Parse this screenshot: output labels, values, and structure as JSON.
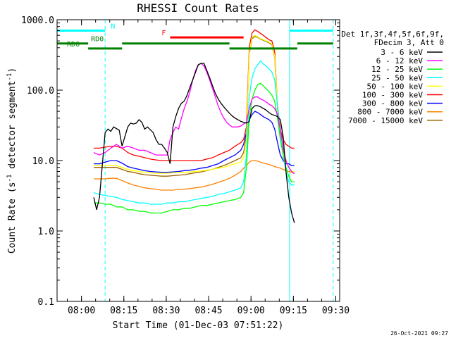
{
  "chart_data": {
    "type": "line",
    "title": "RHESSI Count Rates",
    "xlabel": "Start Time (01-Dec-03 07:51:22)",
    "ylabel_main": "Count Rate (s",
    "ylabel_sup1": "-1",
    "ylabel_mid": " detector segment",
    "ylabel_sup2": "-1",
    "ylabel_end": ")",
    "timestamp": "26-Oct-2021 09:27",
    "x_scale": "time (minutes since 07:51:22)",
    "xlim": [
      0,
      100
    ],
    "y_scale": "log",
    "ylim": [
      0.1,
      1000
    ],
    "x_ticks": [
      {
        "value": 8.63,
        "label": "08:00"
      },
      {
        "value": 23.63,
        "label": "08:15"
      },
      {
        "value": 38.63,
        "label": "08:30"
      },
      {
        "value": 53.63,
        "label": "08:45"
      },
      {
        "value": 68.63,
        "label": "09:00"
      },
      {
        "value": 83.63,
        "label": "09:15"
      },
      {
        "value": 98.63,
        "label": "09:30"
      }
    ],
    "y_ticks": [
      {
        "value": 0.1,
        "label": "0.1"
      },
      {
        "value": 1,
        "label": "1.0"
      },
      {
        "value": 10,
        "label": "10.0"
      },
      {
        "value": 100,
        "label": "100.0"
      },
      {
        "value": 1000,
        "label": "1000.0"
      }
    ],
    "legend": {
      "position": "right",
      "header": [
        "Det 1f,3f,4f,5f,6f,9f,",
        "FDecim 3, Att 0"
      ]
    },
    "series": [
      {
        "name": "3 - 6 keV",
        "color": "#000000",
        "x": [
          13,
          14,
          15,
          17,
          18,
          19,
          20,
          22,
          23,
          25,
          26,
          27,
          28,
          29,
          30,
          31,
          32,
          34,
          35,
          36,
          37,
          38,
          39,
          40,
          41,
          42,
          43,
          44,
          45,
          46,
          47,
          48,
          49,
          50,
          51,
          52,
          53,
          54,
          55,
          56,
          57,
          58,
          59,
          60,
          61,
          62,
          63,
          64,
          65,
          66,
          67,
          68,
          69,
          70,
          71,
          72,
          73,
          74,
          75,
          76,
          77,
          78,
          79,
          80,
          81,
          82,
          83,
          84
        ],
        "y": [
          3,
          2,
          3,
          25,
          28,
          26,
          30,
          27,
          16,
          30,
          34,
          33,
          34,
          38,
          35,
          28,
          30,
          25,
          20,
          17,
          17,
          15,
          13,
          9,
          30,
          42,
          55,
          65,
          70,
          85,
          110,
          140,
          180,
          230,
          240,
          240,
          190,
          150,
          115,
          90,
          75,
          65,
          58,
          52,
          47,
          43,
          40,
          38,
          36,
          35,
          34,
          36,
          55,
          60,
          60,
          58,
          55,
          52,
          48,
          45,
          44,
          42,
          38,
          22,
          7,
          3,
          1.8,
          1.3
        ]
      },
      {
        "name": "6 - 12 keV",
        "color": "#ff00ff",
        "x": [
          13,
          15,
          17,
          19,
          21,
          23,
          25,
          27,
          29,
          31,
          33,
          35,
          37,
          39,
          40,
          41,
          42,
          43,
          44,
          45,
          46,
          47,
          48,
          49,
          50,
          51,
          52,
          53,
          54,
          55,
          56,
          57,
          58,
          59,
          60,
          61,
          62,
          63,
          64,
          65,
          66,
          67,
          68,
          69,
          70,
          71,
          72,
          73,
          74,
          75,
          76,
          77,
          78,
          79,
          80,
          81,
          82,
          83,
          84
        ],
        "y": [
          13,
          12,
          13,
          15,
          17,
          15,
          16,
          15,
          14,
          14,
          13,
          12,
          12,
          12,
          20,
          25,
          30,
          28,
          40,
          55,
          70,
          95,
          140,
          190,
          230,
          240,
          220,
          180,
          140,
          105,
          80,
          60,
          48,
          40,
          35,
          32,
          30,
          30,
          30,
          31,
          33,
          35,
          55,
          75,
          80,
          80,
          75,
          72,
          68,
          63,
          60,
          55,
          45,
          28,
          15,
          10,
          8,
          7,
          6.5
        ]
      },
      {
        "name": "12 - 25 keV",
        "color": "#00ff00",
        "x": [
          13,
          15,
          17,
          19,
          21,
          23,
          25,
          27,
          29,
          31,
          33,
          35,
          37,
          39,
          41,
          43,
          45,
          47,
          49,
          51,
          53,
          55,
          57,
          59,
          61,
          63,
          65,
          66,
          67,
          68,
          69,
          70,
          71,
          72,
          73,
          74,
          75,
          76,
          77,
          78,
          79,
          80,
          81,
          82,
          83,
          84
        ],
        "y": [
          2.5,
          2.5,
          2.4,
          2.4,
          2.2,
          2.2,
          2.0,
          2.0,
          1.9,
          1.9,
          1.8,
          1.8,
          1.8,
          1.9,
          2.0,
          2.0,
          2.1,
          2.1,
          2.2,
          2.3,
          2.3,
          2.4,
          2.5,
          2.6,
          2.7,
          2.8,
          3.0,
          3.5,
          8,
          40,
          75,
          100,
          120,
          125,
          115,
          105,
          95,
          85,
          70,
          40,
          20,
          12,
          8,
          6,
          5,
          5
        ]
      },
      {
        "name": "25 - 50 keV",
        "color": "#00ffff",
        "x": [
          13,
          15,
          17,
          19,
          21,
          23,
          25,
          27,
          29,
          31,
          33,
          35,
          37,
          39,
          41,
          43,
          45,
          47,
          49,
          51,
          53,
          55,
          57,
          59,
          61,
          63,
          65,
          66,
          67,
          68,
          69,
          70,
          71,
          72,
          73,
          74,
          75,
          76,
          77,
          78,
          79,
          80,
          81,
          82,
          83,
          84
        ],
        "y": [
          3.5,
          3.3,
          3.2,
          3.1,
          3.0,
          2.8,
          2.7,
          2.6,
          2.5,
          2.5,
          2.4,
          2.4,
          2.4,
          2.5,
          2.5,
          2.6,
          2.6,
          2.7,
          2.8,
          2.9,
          3.0,
          3.1,
          3.3,
          3.4,
          3.6,
          3.8,
          4.1,
          5,
          12,
          80,
          150,
          200,
          230,
          260,
          235,
          220,
          200,
          180,
          140,
          60,
          25,
          12,
          7,
          5,
          4.5,
          4.5
        ]
      },
      {
        "name": "50 - 100 keV",
        "color": "#ffff00",
        "x": [
          13,
          15,
          17,
          19,
          21,
          23,
          25,
          27,
          29,
          31,
          33,
          35,
          37,
          39,
          41,
          43,
          45,
          47,
          49,
          51,
          53,
          55,
          57,
          59,
          61,
          63,
          65,
          66,
          67,
          68,
          69,
          70,
          71,
          72,
          73,
          74,
          75,
          76,
          77,
          78,
          79,
          80,
          81,
          82,
          83,
          84
        ],
        "y": [
          8.5,
          8.5,
          8.5,
          8.6,
          8.5,
          8.0,
          7.5,
          7.2,
          7.0,
          6.8,
          6.7,
          6.6,
          6.6,
          6.6,
          6.7,
          6.8,
          6.8,
          6.9,
          7.0,
          7.1,
          7.3,
          7.5,
          7.8,
          8.0,
          8.5,
          9.0,
          9.5,
          11,
          20,
          350,
          560,
          600,
          570,
          540,
          520,
          500,
          480,
          450,
          300,
          60,
          25,
          15,
          10,
          8,
          7,
          7
        ]
      },
      {
        "name": "100 - 300 keV",
        "color": "#ff0000",
        "x": [
          13,
          15,
          17,
          19,
          21,
          23,
          25,
          27,
          29,
          31,
          33,
          35,
          37,
          39,
          41,
          43,
          45,
          47,
          49,
          51,
          53,
          55,
          57,
          59,
          61,
          63,
          65,
          66,
          67,
          68,
          69,
          70,
          71,
          72,
          73,
          74,
          75,
          76,
          77,
          78,
          79,
          80,
          81,
          82,
          83,
          84
        ],
        "y": [
          15,
          15,
          15.5,
          16,
          16,
          15,
          13,
          12,
          11.5,
          11,
          10.5,
          10.2,
          10,
          10,
          10,
          10,
          10,
          10,
          10,
          10,
          10.5,
          11,
          12,
          13,
          14,
          16,
          18,
          20,
          30,
          400,
          650,
          720,
          680,
          640,
          600,
          560,
          520,
          500,
          350,
          60,
          28,
          20,
          17,
          16,
          15,
          15
        ]
      },
      {
        "name": "300 - 800 keV",
        "color": "#0000ff",
        "x": [
          13,
          15,
          17,
          19,
          21,
          23,
          25,
          27,
          29,
          31,
          33,
          35,
          37,
          39,
          41,
          43,
          45,
          47,
          49,
          51,
          53,
          55,
          57,
          59,
          61,
          63,
          65,
          66,
          67,
          68,
          69,
          70,
          71,
          72,
          73,
          74,
          75,
          76,
          77,
          78,
          79,
          80,
          81,
          82,
          83,
          84
        ],
        "y": [
          9,
          9,
          9.5,
          10,
          10,
          9.2,
          8.2,
          7.8,
          7.5,
          7.2,
          7.0,
          6.9,
          6.8,
          6.8,
          6.9,
          7.0,
          7.2,
          7.3,
          7.5,
          7.8,
          8.0,
          8.5,
          9.0,
          10,
          11,
          12,
          14,
          17,
          25,
          38,
          45,
          50,
          48,
          45,
          42,
          40,
          38,
          35,
          28,
          18,
          12,
          10,
          9,
          9,
          8.5,
          8.5
        ]
      },
      {
        "name": "800 - 7000 keV",
        "color": "#ff8000",
        "x": [
          13,
          15,
          17,
          19,
          21,
          23,
          25,
          27,
          29,
          31,
          33,
          35,
          37,
          39,
          41,
          43,
          45,
          47,
          49,
          51,
          53,
          55,
          57,
          59,
          61,
          63,
          65,
          66,
          67,
          68,
          69,
          70,
          71,
          72,
          73,
          74,
          75,
          76,
          77,
          78,
          79,
          80,
          81,
          82,
          83,
          84
        ],
        "y": [
          5.5,
          5.5,
          5.5,
          5.6,
          5.6,
          5.2,
          4.8,
          4.5,
          4.3,
          4.1,
          4.0,
          3.9,
          3.8,
          3.8,
          3.8,
          3.9,
          3.9,
          4.0,
          4.1,
          4.2,
          4.4,
          4.6,
          4.9,
          5.2,
          5.6,
          6.2,
          7.0,
          7.8,
          8.5,
          9.5,
          10,
          10,
          9.8,
          9.5,
          9.2,
          9,
          8.8,
          8.5,
          8.2,
          8,
          7.8,
          7.5,
          7.2,
          7,
          6.8,
          6.5
        ]
      },
      {
        "name": "7000 - 15000 keV",
        "color": "#a06000",
        "x": [
          13,
          15,
          17,
          19,
          21,
          23,
          25,
          27,
          29,
          31,
          33,
          35,
          37,
          39,
          41,
          43,
          45,
          47,
          49,
          51,
          53,
          55,
          57,
          59,
          61,
          63,
          65,
          66,
          67,
          68,
          69,
          70,
          71,
          72,
          73,
          74,
          75,
          76,
          77,
          78,
          79,
          80,
          81,
          82,
          83,
          84
        ],
        "y": [
          8,
          8,
          8,
          8,
          8,
          7.5,
          7,
          6.8,
          6.5,
          6.3,
          6.2,
          6.1,
          6,
          6,
          6.1,
          6.2,
          6.3,
          6.5,
          6.7,
          6.9,
          7.2,
          7.5,
          8,
          8.5,
          9.2,
          10,
          11,
          13,
          22,
          330,
          540,
          580,
          560,
          530,
          510,
          490,
          470,
          440,
          290,
          55,
          22,
          14,
          10,
          8,
          7,
          7
        ]
      }
    ],
    "vertical_lines": [
      {
        "x": 0,
        "color": "#00ffff",
        "style": "solid"
      },
      {
        "x": 17,
        "color": "#00ffff",
        "style": "dashed"
      },
      {
        "x": 82.3,
        "color": "#00ffff",
        "style": "solid"
      },
      {
        "x": 97.7,
        "color": "#00ffff",
        "style": "dashed"
      }
    ],
    "annotations": [
      {
        "label": "N",
        "color": "#00ffff",
        "segments": [
          [
            0,
            17
          ],
          [
            82.3,
            97.7
          ]
        ],
        "y_level": 700,
        "label_x": 19
      },
      {
        "label": "F",
        "color": "#ff0000",
        "segments": [
          [
            40,
            66
          ]
        ],
        "y_level": 560,
        "label_x": 37
      },
      {
        "label": "RD0",
        "color": "#008000",
        "segments": [
          [
            0,
            11
          ],
          [
            23,
            61
          ],
          [
            85,
            97.7
          ]
        ],
        "y_level": 460,
        "label_x": 12
      },
      {
        "label": "RD6",
        "color": "#008000",
        "segments": [
          [
            11,
            23
          ],
          [
            61,
            85
          ]
        ],
        "y_level": 390,
        "label_x": 3.5
      }
    ]
  }
}
